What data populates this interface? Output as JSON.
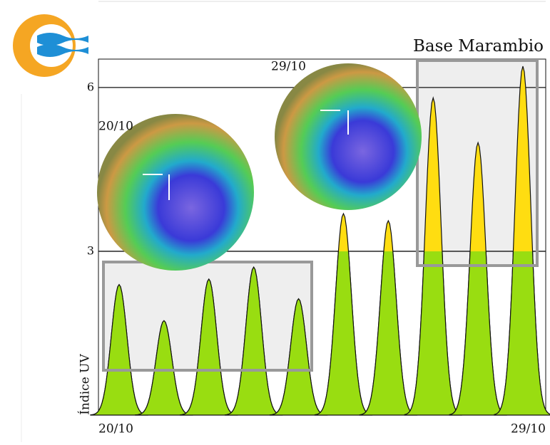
{
  "chart_data": {
    "type": "peaks",
    "title": "Base Marambio",
    "y_label": "Índice UV",
    "categories": [
      "20/10",
      null,
      null,
      null,
      null,
      null,
      null,
      null,
      null,
      "29/10"
    ],
    "values": [
      2.39,
      1.73,
      2.49,
      2.71,
      2.13,
      3.69,
      3.56,
      5.81,
      4.99,
      6.39
    ],
    "ylim": [
      0,
      6.52
    ],
    "yticks": [
      3,
      6
    ],
    "grid": true,
    "color": "#99dd11",
    "highlight_color": "#ffdd11",
    "annotations": [
      "20/10",
      "29/10"
    ]
  }
}
